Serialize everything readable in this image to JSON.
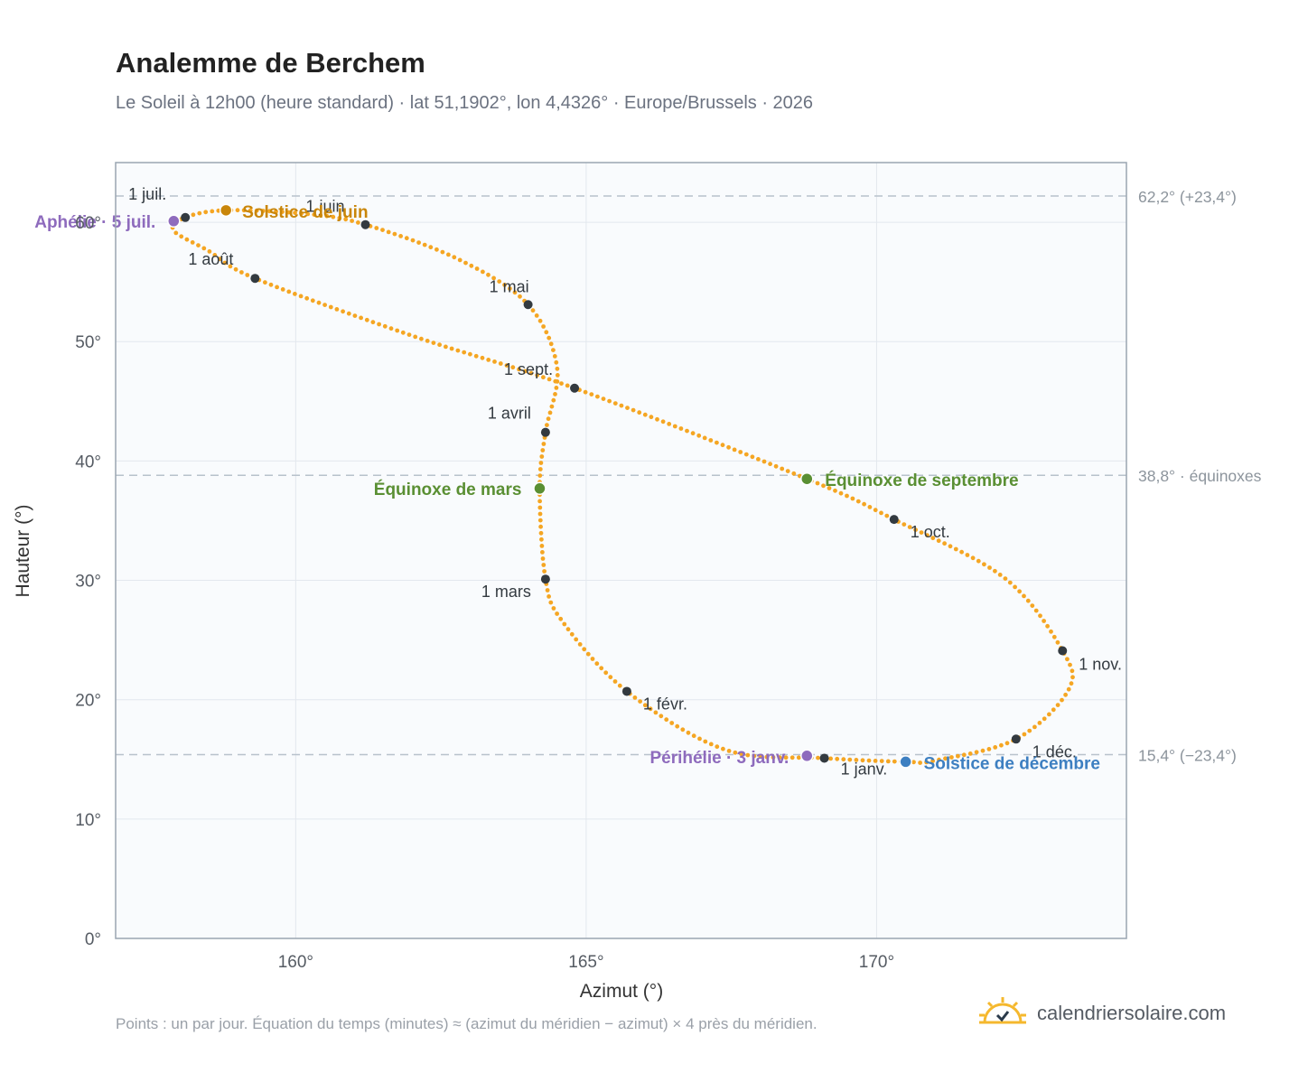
{
  "title": "Analemme de Berchem",
  "subtitle": "Le Soleil à 12h00 (heure standard) · lat 51,1902°, lon 4,4326° · Europe/Brussels · 2026",
  "footnote": "Points : un par jour. Équation du temps (minutes) ≈ (azimut du méridien − azimut) × 4 près du méridien.",
  "brand": {
    "text": "calendriersolaire.com",
    "icon": "sun-check-icon"
  },
  "colors": {
    "curve": "#F5A623",
    "month_marker": "#333a40",
    "aphelion": "#8e6bbd",
    "solstice_june": "#c9860a",
    "equinox": "#5a8f33",
    "solstice_december": "#3d7fc1",
    "reference_line": "#b8c2cc",
    "plot_background": "#f9fbfd",
    "plot_border": "#9aa5b1",
    "grid": "#e3e8ee"
  },
  "chart_data": {
    "type": "scatter",
    "title": "Analemme de Berchem",
    "xlabel": "Azimut (°)",
    "ylabel": "Hauteur (°)",
    "xlim": [
      156.9,
      174.3
    ],
    "ylim": [
      0,
      65
    ],
    "xticks": [
      160,
      165,
      170
    ],
    "xtick_labels": [
      "160°",
      "165°",
      "170°"
    ],
    "yticks": [
      0,
      10,
      20,
      30,
      40,
      50,
      60
    ],
    "ytick_labels": [
      "0°",
      "10°",
      "20°",
      "30°",
      "40°",
      "50°",
      "60°"
    ],
    "grid": true,
    "curve_description": "un point par jour",
    "analemma_path": [
      {
        "x": 169.1,
        "y": 15.1
      },
      {
        "x": 167.4,
        "y": 15.8
      },
      {
        "x": 165.7,
        "y": 20.7
      },
      {
        "x": 164.6,
        "y": 26.5
      },
      {
        "x": 164.3,
        "y": 30.1
      },
      {
        "x": 164.2,
        "y": 37.7
      },
      {
        "x": 164.3,
        "y": 42.4
      },
      {
        "x": 164.5,
        "y": 47.8
      },
      {
        "x": 164.0,
        "y": 53.1
      },
      {
        "x": 162.8,
        "y": 56.9
      },
      {
        "x": 161.2,
        "y": 59.8
      },
      {
        "x": 160.2,
        "y": 60.7
      },
      {
        "x": 158.8,
        "y": 61.0
      },
      {
        "x": 158.1,
        "y": 60.4
      },
      {
        "x": 157.9,
        "y": 59.3
      },
      {
        "x": 158.5,
        "y": 57.6
      },
      {
        "x": 159.3,
        "y": 55.3
      },
      {
        "x": 162.0,
        "y": 50.5
      },
      {
        "x": 164.8,
        "y": 46.1
      },
      {
        "x": 168.8,
        "y": 38.5
      },
      {
        "x": 170.3,
        "y": 35.1
      },
      {
        "x": 172.2,
        "y": 30.2
      },
      {
        "x": 173.2,
        "y": 24.1
      },
      {
        "x": 173.3,
        "y": 20.8
      },
      {
        "x": 172.4,
        "y": 16.7
      },
      {
        "x": 171.0,
        "y": 14.9
      },
      {
        "x": 170.5,
        "y": 14.8
      },
      {
        "x": 169.1,
        "y": 15.1
      }
    ],
    "month_markers": [
      {
        "label": "1 janv.",
        "x": 169.1,
        "y": 15.1
      },
      {
        "label": "1 févr.",
        "x": 165.7,
        "y": 20.7
      },
      {
        "label": "1 mars",
        "x": 164.3,
        "y": 30.1
      },
      {
        "label": "1 avril",
        "x": 164.3,
        "y": 42.4
      },
      {
        "label": "1 mai",
        "x": 164.0,
        "y": 53.1
      },
      {
        "label": "1 juin",
        "x": 161.2,
        "y": 59.8
      },
      {
        "label": "1 juil.",
        "x": 158.1,
        "y": 60.4
      },
      {
        "label": "1 août",
        "x": 159.3,
        "y": 55.3
      },
      {
        "label": "1 sept.",
        "x": 164.8,
        "y": 46.1
      },
      {
        "label": "1 oct.",
        "x": 170.3,
        "y": 35.1
      },
      {
        "label": "1 nov.",
        "x": 173.2,
        "y": 24.1
      },
      {
        "label": "1 déc.",
        "x": 172.4,
        "y": 16.7
      }
    ],
    "special_points": [
      {
        "label": "Aphélie · 5 juil.",
        "x": 157.9,
        "y": 60.1,
        "color": "#8e6bbd"
      },
      {
        "label": "Solstice de juin",
        "x": 158.8,
        "y": 61.0,
        "color": "#c9860a"
      },
      {
        "label": "Équinoxe de mars",
        "x": 164.2,
        "y": 37.7,
        "color": "#5a8f33"
      },
      {
        "label": "Équinoxe de septembre",
        "x": 168.8,
        "y": 38.5,
        "color": "#5a8f33"
      },
      {
        "label": "Périhélie · 3 janv.",
        "x": 168.8,
        "y": 15.3,
        "color": "#8e6bbd"
      },
      {
        "label": "Solstice de décembre",
        "x": 170.5,
        "y": 14.8,
        "color": "#3d7fc1"
      }
    ],
    "reference_lines": [
      {
        "y": 62.2,
        "label": "62,2° (+23,4°)"
      },
      {
        "y": 38.8,
        "label": "38,8° · équinoxes"
      },
      {
        "y": 15.4,
        "label": "15,4° (−23,4°)"
      }
    ]
  }
}
